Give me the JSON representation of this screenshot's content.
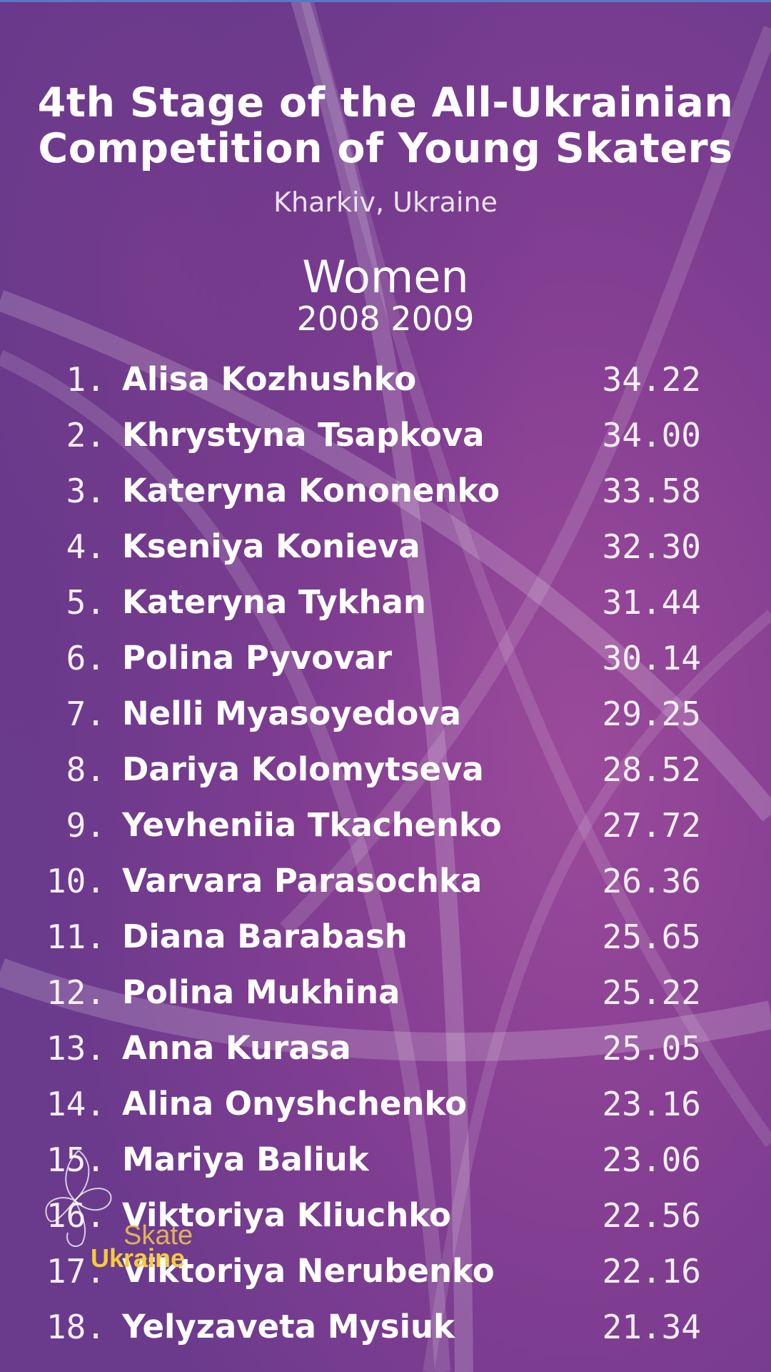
{
  "header": {
    "title_line1": "4th Stage of the All-Ukrainian",
    "title_line2": "Competition of Young Skaters",
    "location": "Kharkiv, Ukraine"
  },
  "category": {
    "name": "Women",
    "years": "2008 2009"
  },
  "results": [
    {
      "rank": "1.",
      "name": "Alisa Kozhushko",
      "score": "34.22"
    },
    {
      "rank": "2.",
      "name": "Khrystyna Tsapkova",
      "score": "34.00"
    },
    {
      "rank": "3.",
      "name": "Kateryna Kononenko",
      "score": "33.58"
    },
    {
      "rank": "4.",
      "name": "Kseniya Konieva",
      "score": "32.30"
    },
    {
      "rank": "5.",
      "name": "Kateryna Tykhan",
      "score": "31.44"
    },
    {
      "rank": "6.",
      "name": "Polina Pyvovar",
      "score": "30.14"
    },
    {
      "rank": "7.",
      "name": "Nelli Myasoyedova",
      "score": "29.25"
    },
    {
      "rank": "8.",
      "name": "Dariya Kolomytseva",
      "score": "28.52"
    },
    {
      "rank": "9.",
      "name": "Yevheniia Tkachenko",
      "score": "27.72"
    },
    {
      "rank": "10.",
      "name": "Varvara Parasochka",
      "score": "26.36"
    },
    {
      "rank": "11.",
      "name": "Diana Barabash",
      "score": "25.65"
    },
    {
      "rank": "12.",
      "name": "Polina Mukhina",
      "score": "25.22"
    },
    {
      "rank": "13.",
      "name": "Anna Kurasa",
      "score": "25.05"
    },
    {
      "rank": "14.",
      "name": "Alina Onyshchenko",
      "score": "23.16"
    },
    {
      "rank": "15.",
      "name": "Mariya Baliuk",
      "score": "23.06"
    },
    {
      "rank": "16.",
      "name": "Viktoriya Kliuchko",
      "score": "22.56"
    },
    {
      "rank": "17.",
      "name": "Viktoriya Nerubenko",
      "score": "22.16"
    },
    {
      "rank": "18.",
      "name": "Yelyzaveta Mysiuk",
      "score": "21.34"
    }
  ],
  "logo": {
    "word1": "Skate",
    "word2": "Ukraine",
    "icon": "skater-swirl-icon"
  },
  "colors": {
    "background": "#7c3f8e",
    "logo_accent": "#f5cc3a"
  }
}
